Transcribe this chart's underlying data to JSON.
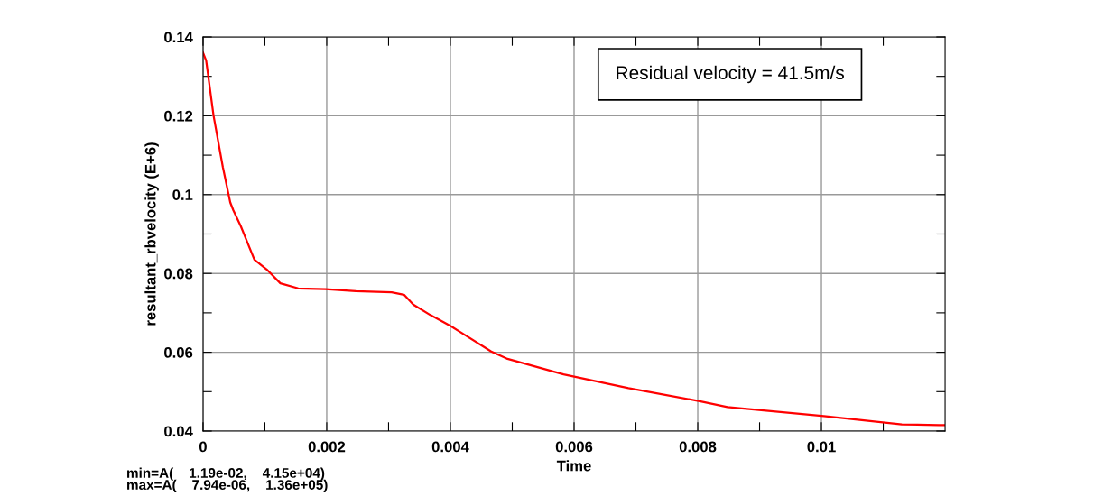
{
  "chart_data": {
    "type": "line",
    "xlabel": "Time",
    "ylabel": "resultant_rbvelocity (E+6)",
    "x": [
      0,
      5e-05,
      0.00017,
      0.00032,
      0.00044,
      0.00049,
      0.00061,
      0.00083,
      0.00103,
      0.00125,
      0.00154,
      0.00198,
      0.00247,
      0.00305,
      0.00325,
      0.0034,
      0.00367,
      0.00401,
      0.00466,
      0.00491,
      0.00583,
      0.00688,
      0.00803,
      0.00848,
      0.01004,
      0.0113,
      0.0119,
      0.012
    ],
    "series": [
      {
        "color": "#ff0000",
        "values": [
          0.136,
          0.134,
          0.12,
          0.107,
          0.098,
          0.096,
          0.092,
          0.0835,
          0.081,
          0.0775,
          0.0762,
          0.076,
          0.0755,
          0.0752,
          0.0746,
          0.0721,
          0.0695,
          0.0666,
          0.0602,
          0.0584,
          0.0544,
          0.0509,
          0.0476,
          0.0461,
          0.0438,
          0.0417,
          0.0415,
          0.0415
        ]
      }
    ],
    "xlim": [
      0,
      0.012
    ],
    "ylim": [
      0.04,
      0.14
    ],
    "xticks": [
      0,
      {
        "value": 0.001,
        "label": null
      },
      0.002,
      {
        "value": 0.003,
        "label": null
      },
      0.004,
      {
        "value": 0.005,
        "label": null
      },
      0.006,
      {
        "value": 0.007,
        "label": null
      },
      0.008,
      {
        "value": 0.009,
        "label": null
      },
      0.01,
      {
        "value": 0.011,
        "label": null
      }
    ],
    "yticks": [
      0.04,
      {
        "value": 0.05,
        "label": null
      },
      0.06,
      {
        "value": 0.07,
        "label": null
      },
      0.08,
      {
        "value": 0.09,
        "label": null
      },
      0.1,
      {
        "value": 0.11,
        "label": null
      },
      0.12,
      {
        "value": 0.13,
        "label": null
      },
      0.14
    ],
    "grid": true,
    "legend": false,
    "marker": "none",
    "line_style": "solid",
    "annotations": [
      "Residual velocity = 41.5m/s",
      "min=A(    1.19e-02,    4.15e+04)\nmax=A(    7.94e-06,    1.36e+05)"
    ]
  }
}
